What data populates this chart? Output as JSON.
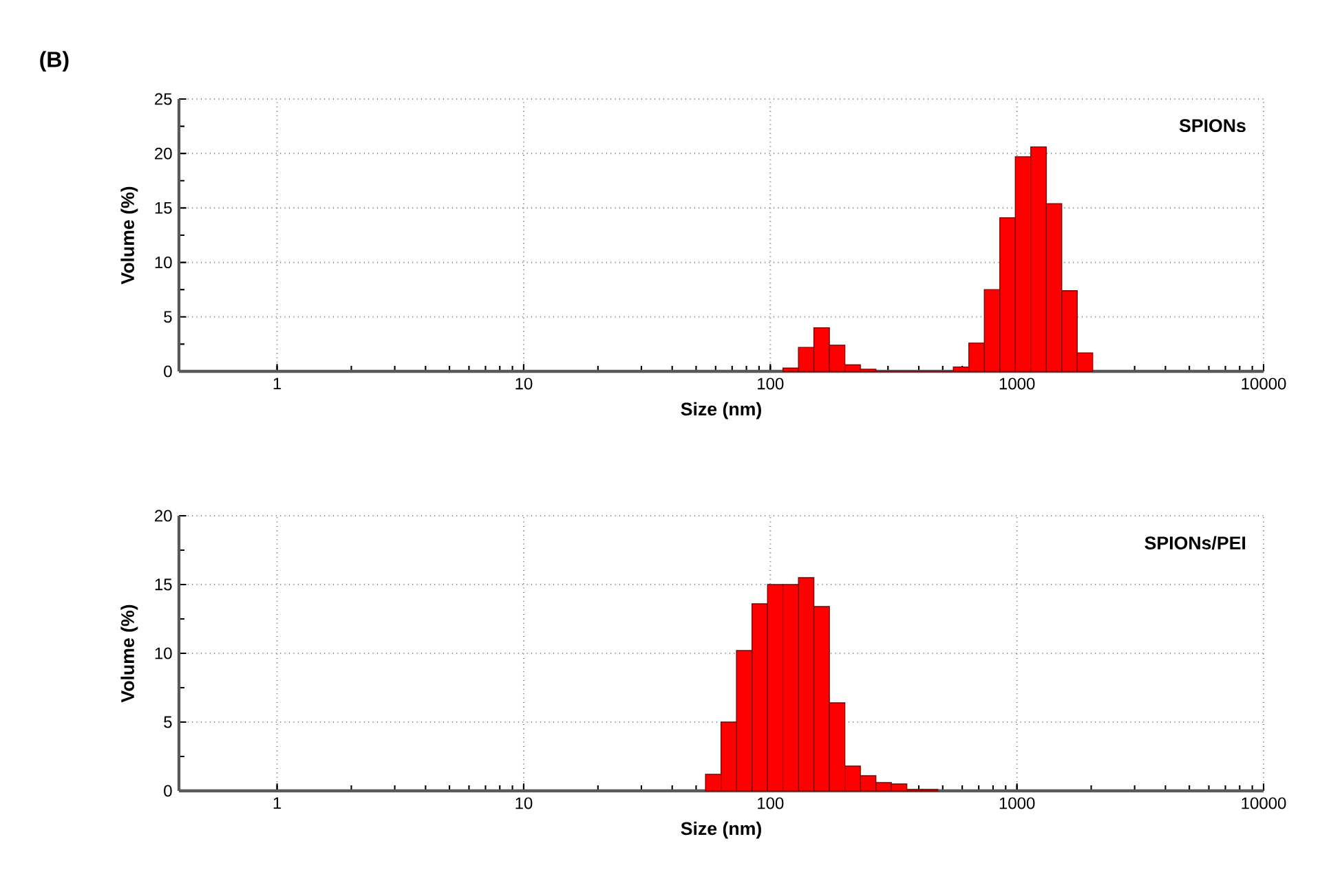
{
  "chart_data": [
    {
      "type": "histogram",
      "title": "(B)",
      "xlabel": "Size (nm)",
      "ylabel": "Volume (%)",
      "annotations": [
        "SPIONs"
      ],
      "bins": [
        112.5,
        130.0,
        150.2,
        173.6,
        200.6,
        231.8,
        268.0,
        309.6,
        357.8,
        413.5,
        477.8,
        552.2,
        638.1,
        737.4,
        852.2,
        984.8,
        1137.8,
        1314.8,
        1519.4,
        1755.8,
        2028.8
      ],
      "values": [
        0.3,
        2.2,
        4.0,
        2.4,
        0.6,
        0.2,
        0,
        0,
        0,
        0,
        0,
        0.4,
        2.6,
        7.5,
        14.1,
        19.7,
        20.6,
        15.4,
        7.4,
        1.7
      ],
      "color": "#ff0000",
      "log": "x",
      "grid": true,
      "xlim": [
        0.4,
        10000
      ],
      "xticks": [
        1,
        10,
        100,
        1000,
        10000
      ],
      "ylim": [
        0,
        25
      ],
      "yticks": [
        0,
        5,
        10,
        15,
        20,
        25
      ]
    },
    {
      "type": "histogram",
      "xlabel": "Size (nm)",
      "ylabel": "Volume (%)",
      "annotations": [
        "SPIONs/PEI"
      ],
      "bins": [
        54.6,
        63.1,
        72.9,
        84.3,
        97.4,
        112.5,
        130.0,
        150.2,
        173.6,
        200.6,
        231.8,
        268.0,
        309.6,
        357.8,
        413.5,
        477.8
      ],
      "values": [
        1.2,
        5.0,
        10.2,
        13.6,
        15.0,
        15.0,
        15.5,
        13.4,
        6.4,
        1.8,
        1.1,
        0.6,
        0.5,
        0.1,
        0.1
      ],
      "color": "#ff0000",
      "log": "x",
      "grid": true,
      "xlim": [
        0.4,
        10000
      ],
      "xticks": [
        1,
        10,
        100,
        1000,
        10000
      ],
      "ylim": [
        0,
        20
      ],
      "yticks": [
        0,
        5,
        10,
        15,
        20
      ]
    }
  ]
}
